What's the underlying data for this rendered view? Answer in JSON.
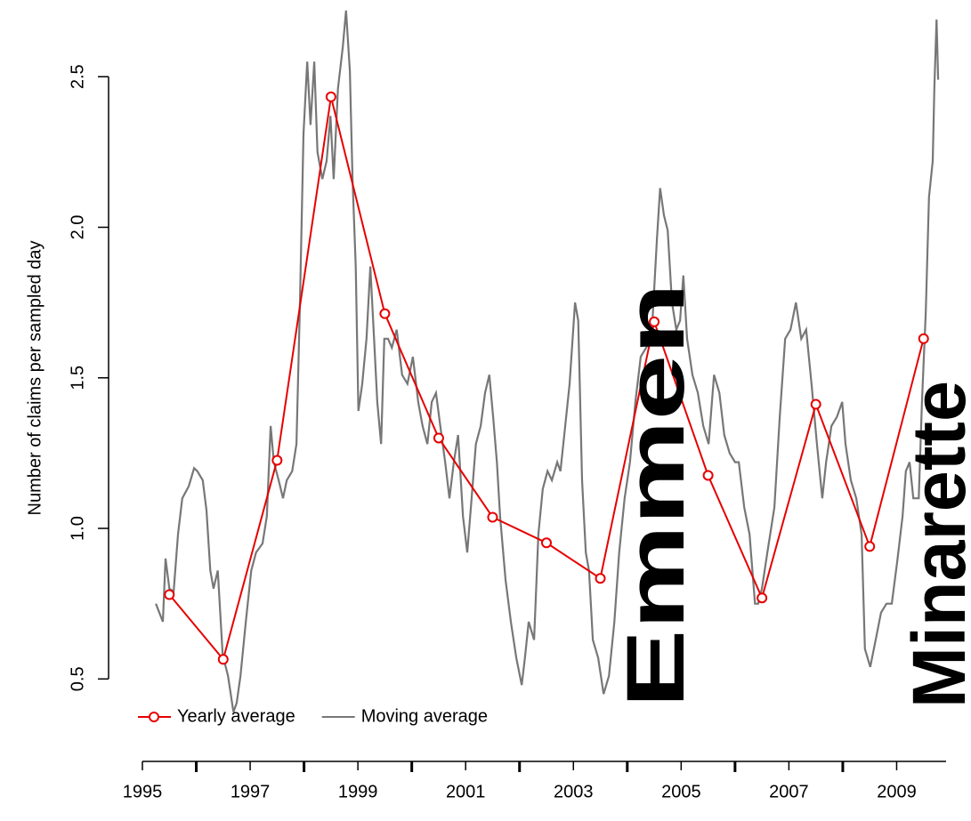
{
  "chart_data": {
    "type": "line",
    "ylabel": "Number of claims per sampled day",
    "xlim": [
      1995,
      2010
    ],
    "ylim": [
      0.3,
      2.74
    ],
    "xticks": [
      1995,
      1997,
      1999,
      2001,
      2003,
      2005,
      2007,
      2009
    ],
    "yticks": [
      {
        "value": 0.5,
        "label": "0.5"
      },
      {
        "value": 1.0,
        "label": "1.0"
      },
      {
        "value": 1.5,
        "label": "1.5"
      },
      {
        "value": 2.0,
        "label": "2.0"
      },
      {
        "value": 2.5,
        "label": "2.5"
      }
    ],
    "legend": "bottomleft",
    "annotations": [
      "Emmen",
      "Minarette"
    ],
    "annotation_color": "#dd2200",
    "series": [
      {
        "name": "Yearly average",
        "color": "#e60000",
        "markers": true,
        "x": [
          1995.5,
          1996.5,
          1997.5,
          1998.5,
          1999.5,
          2000.5,
          2001.5,
          2002.5,
          2003.5,
          2004.5,
          2005.5,
          2006.5,
          2007.5,
          2008.5,
          2009.5
        ],
        "values": [
          0.78,
          0.565,
          1.226,
          2.433,
          1.713,
          1.3,
          1.037,
          0.952,
          0.834,
          1.686,
          1.176,
          0.769,
          1.412,
          0.94,
          1.63
        ]
      },
      {
        "name": "Moving average",
        "color": "#777777",
        "markers": false,
        "x": [
          1995.25,
          1995.38,
          1995.43,
          1995.5,
          1995.58,
          1995.66,
          1995.74,
          1995.86,
          1995.96,
          1996.02,
          1996.12,
          1996.19,
          1996.26,
          1996.32,
          1996.4,
          1996.49,
          1996.59,
          1996.69,
          1996.75,
          1996.82,
          1996.92,
          1997.02,
          1997.11,
          1997.23,
          1997.31,
          1997.38,
          1997.44,
          1997.53,
          1997.61,
          1997.68,
          1997.78,
          1997.86,
          1997.92,
          1997.99,
          1998.06,
          1998.12,
          1998.19,
          1998.25,
          1998.34,
          1998.42,
          1998.49,
          1998.55,
          1998.63,
          1998.72,
          1998.78,
          1998.85,
          1998.9,
          1998.96,
          1999.01,
          1999.08,
          1999.16,
          1999.23,
          1999.3,
          1999.36,
          1999.43,
          1999.49,
          1999.56,
          1999.63,
          1999.72,
          1999.82,
          1999.92,
          2000.02,
          2000.12,
          2000.2,
          2000.29,
          2000.37,
          2000.45,
          2000.53,
          2000.62,
          2000.7,
          2000.78,
          2000.86,
          2000.95,
          2001.03,
          2001.11,
          2001.19,
          2001.28,
          2001.36,
          2001.44,
          2001.51,
          2001.58,
          2001.64,
          2001.74,
          2001.84,
          2001.94,
          2002.04,
          2002.1,
          2002.17,
          2002.27,
          2002.35,
          2002.43,
          2002.52,
          2002.6,
          2002.7,
          2002.76,
          2002.83,
          2002.93,
          2003.03,
          2003.09,
          2003.16,
          2003.23,
          2003.29,
          2003.36,
          2003.46,
          2003.56,
          2003.66,
          2003.76,
          2003.85,
          2003.95,
          2004.05,
          2004.15,
          2004.25,
          2004.35,
          2004.45,
          2004.55,
          2004.61,
          2004.68,
          2004.75,
          2004.83,
          2004.91,
          2004.98,
          2005.04,
          2005.11,
          2005.21,
          2005.31,
          2005.41,
          2005.51,
          2005.61,
          2005.71,
          2005.8,
          2005.9,
          2006.0,
          2006.07,
          2006.17,
          2006.27,
          2006.37,
          2006.43,
          2006.5,
          2006.6,
          2006.73,
          2006.83,
          2006.93,
          2007.03,
          2007.13,
          2007.23,
          2007.32,
          2007.42,
          2007.52,
          2007.62,
          2007.69,
          2007.79,
          2007.89,
          2007.99,
          2008.05,
          2008.15,
          2008.25,
          2008.35,
          2008.41,
          2008.51,
          2008.61,
          2008.71,
          2008.81,
          2008.91,
          2009.01,
          2009.11,
          2009.17,
          2009.24,
          2009.31,
          2009.41,
          2009.47,
          2009.54,
          2009.6,
          2009.67,
          2009.7,
          2009.74,
          2009.77
        ],
        "values": [
          0.75,
          0.69,
          0.9,
          0.8,
          0.79,
          0.98,
          1.1,
          1.14,
          1.2,
          1.19,
          1.16,
          1.06,
          0.86,
          0.8,
          0.86,
          0.58,
          0.51,
          0.39,
          0.42,
          0.51,
          0.69,
          0.86,
          0.92,
          0.95,
          1.04,
          1.34,
          1.22,
          1.16,
          1.1,
          1.16,
          1.19,
          1.28,
          1.72,
          2.31,
          2.55,
          2.34,
          2.55,
          2.25,
          2.16,
          2.22,
          2.37,
          2.16,
          2.46,
          2.6,
          2.72,
          2.52,
          2.16,
          1.87,
          1.39,
          1.48,
          1.63,
          1.87,
          1.63,
          1.42,
          1.28,
          1.63,
          1.63,
          1.6,
          1.66,
          1.51,
          1.48,
          1.57,
          1.42,
          1.34,
          1.28,
          1.42,
          1.45,
          1.34,
          1.22,
          1.1,
          1.22,
          1.31,
          1.04,
          0.92,
          1.1,
          1.28,
          1.34,
          1.45,
          1.51,
          1.37,
          1.22,
          1.04,
          0.83,
          0.69,
          0.57,
          0.48,
          0.57,
          0.69,
          0.63,
          0.98,
          1.13,
          1.19,
          1.16,
          1.22,
          1.19,
          1.31,
          1.48,
          1.75,
          1.69,
          1.16,
          0.92,
          0.86,
          0.63,
          0.57,
          0.45,
          0.51,
          0.69,
          0.92,
          1.1,
          1.22,
          1.42,
          1.57,
          1.6,
          1.63,
          1.96,
          2.13,
          2.04,
          1.99,
          1.75,
          1.66,
          1.69,
          1.84,
          1.63,
          1.51,
          1.45,
          1.34,
          1.28,
          1.51,
          1.45,
          1.31,
          1.25,
          1.22,
          1.22,
          1.07,
          0.98,
          0.75,
          0.75,
          0.8,
          0.92,
          1.07,
          1.37,
          1.63,
          1.66,
          1.75,
          1.63,
          1.66,
          1.48,
          1.28,
          1.1,
          1.22,
          1.34,
          1.37,
          1.42,
          1.28,
          1.16,
          1.1,
          0.98,
          0.6,
          0.54,
          0.63,
          0.72,
          0.75,
          0.75,
          0.89,
          1.04,
          1.19,
          1.22,
          1.1,
          1.1,
          1.42,
          1.72,
          2.1,
          2.22,
          2.46,
          2.69,
          2.49
        ]
      }
    ]
  }
}
